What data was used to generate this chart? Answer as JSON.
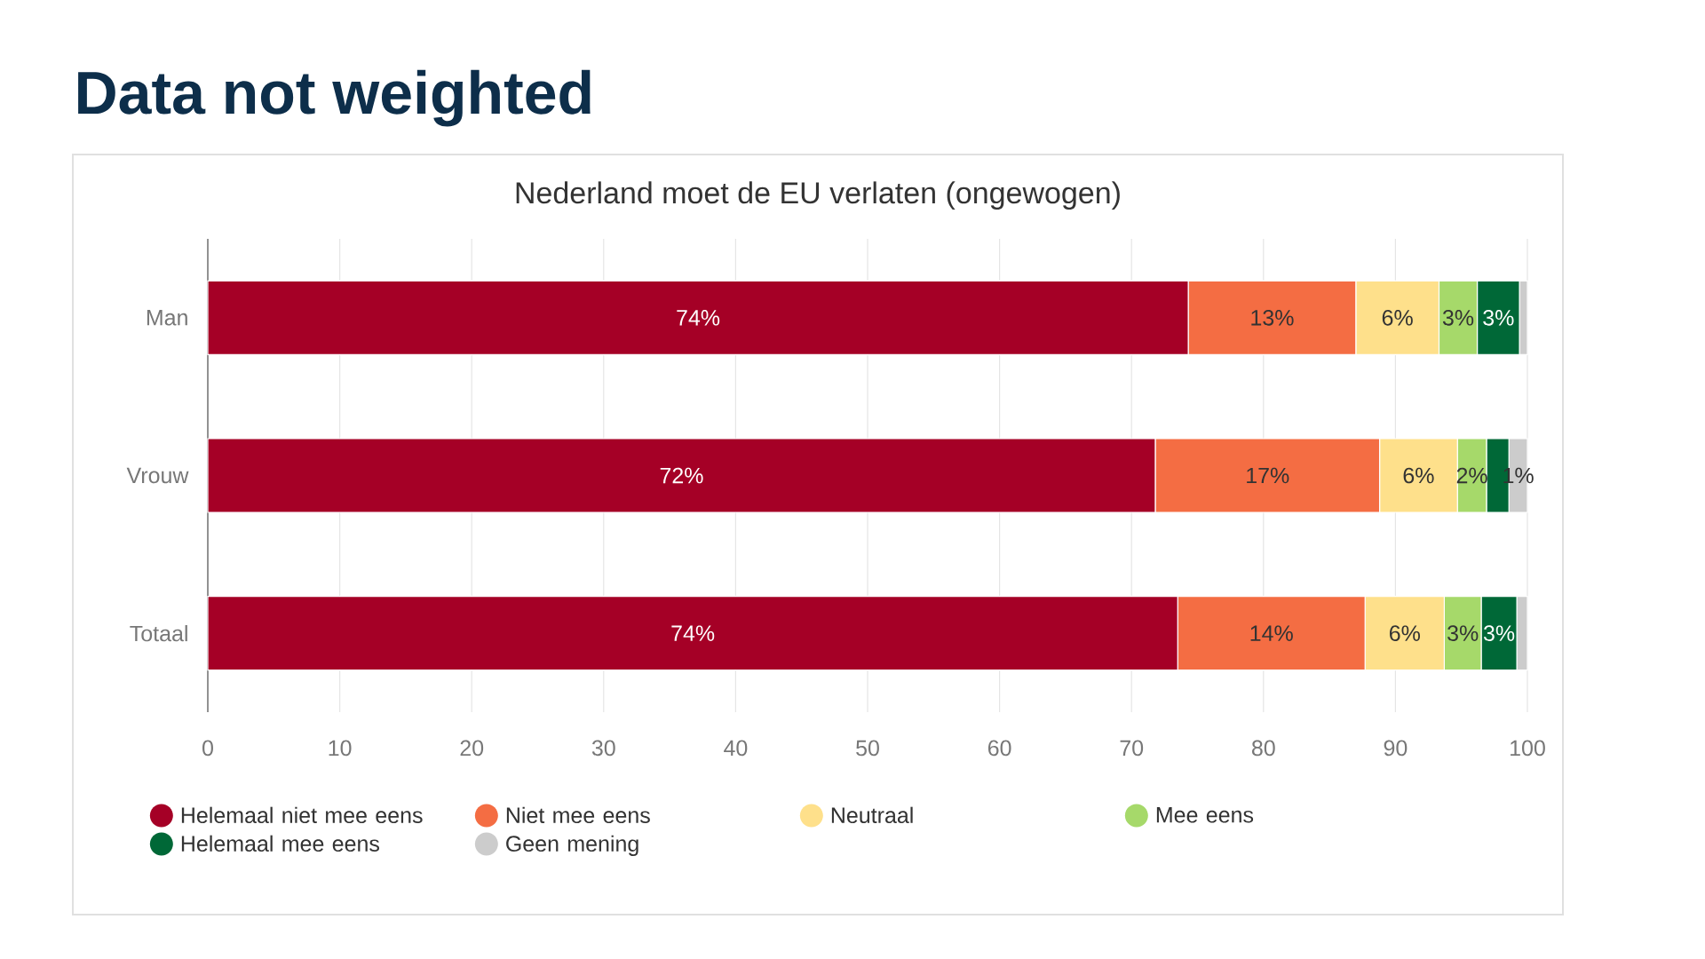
{
  "chart_data": {
    "type": "bar",
    "orientation": "horizontal",
    "stacked": true,
    "title": "Data not weighted",
    "subtitle": "Nederland moet de EU verlaten (ongewogen)",
    "categories": [
      "Man",
      "Vrouw",
      "Totaal"
    ],
    "series": [
      {
        "name": "Helemaal niet mee eens",
        "color": "#a50026",
        "values": [
          74.3,
          71.8,
          73.5
        ],
        "value_labels": [
          "74%",
          "72%",
          "74%"
        ]
      },
      {
        "name": "Niet mee eens",
        "color": "#f46d43",
        "values": [
          12.7,
          17.0,
          14.2
        ],
        "value_labels": [
          "13%",
          "17%",
          "14%"
        ]
      },
      {
        "name": "Neutraal",
        "color": "#fee08b",
        "values": [
          6.3,
          5.9,
          6.0
        ],
        "value_labels": [
          "6%",
          "6%",
          "6%"
        ]
      },
      {
        "name": "Mee eens",
        "color": "#a6d96a",
        "values": [
          2.9,
          2.2,
          2.8
        ],
        "value_labels": [
          "3%",
          "2%",
          "3%"
        ]
      },
      {
        "name": "Helemaal mee eens",
        "color": "#006837",
        "values": [
          3.2,
          1.7,
          2.7
        ],
        "value_labels": [
          "3%",
          null,
          "3%"
        ]
      },
      {
        "name": "Geen mening",
        "color": "#cccccc",
        "values": [
          0.6,
          1.4,
          0.8
        ],
        "value_labels": [
          null,
          "1%",
          null
        ]
      }
    ],
    "xlim": [
      0,
      100
    ],
    "xticks": [
      0,
      10,
      20,
      30,
      40,
      50,
      60,
      70,
      80,
      90,
      100
    ],
    "grid": "x",
    "legend": "bottom"
  }
}
